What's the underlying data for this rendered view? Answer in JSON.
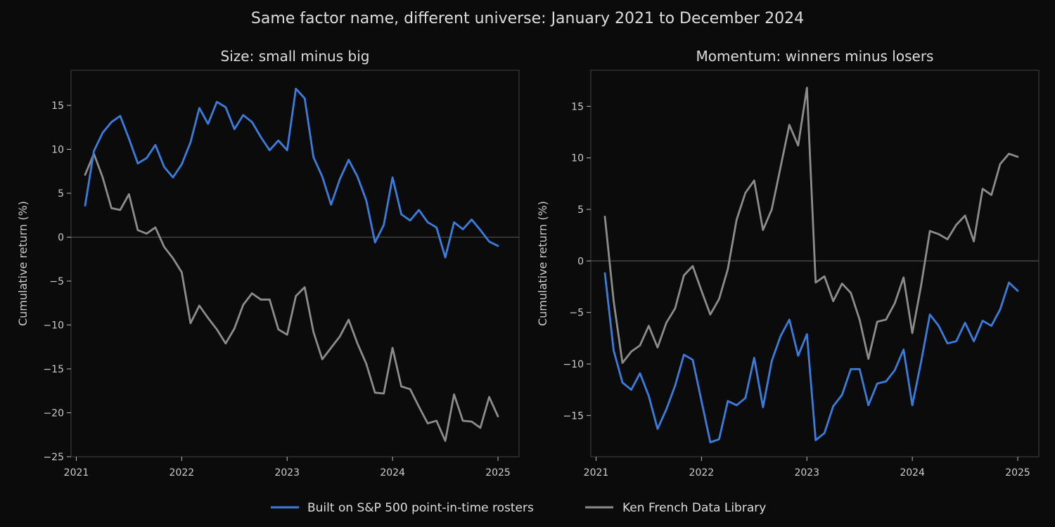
{
  "title": "Same factor name, different universe: January 2021 to December 2024",
  "legend": {
    "items": [
      {
        "label": "Built on S&P 500 point-in-time rosters",
        "color": "#3b7ddd"
      },
      {
        "label": "Ken French Data Library",
        "color": "#8c8c8c"
      }
    ],
    "placement": "bottom-center"
  },
  "chart_data": [
    {
      "type": "line",
      "title": "Size: small minus big",
      "ylabel": "Cumulative return (%)",
      "xlabel": "",
      "x_start": "2021-01",
      "x_step": "1 month",
      "xlim": [
        2020.95,
        2025.2
      ],
      "ylim": [
        -25,
        19
      ],
      "xticks": [
        2021,
        2022,
        2023,
        2024,
        2025
      ],
      "yticks": [
        15,
        10,
        5,
        0,
        -5,
        -10,
        -15,
        -20,
        -25
      ],
      "zero_line": true,
      "grid": false,
      "series": [
        {
          "name": "Built on S&P 500 point-in-time rosters",
          "color": "#3b7ddd",
          "values": [
            3.6,
            9.8,
            11.9,
            13.1,
            13.8,
            11.2,
            8.4,
            9.0,
            10.5,
            8.0,
            6.8,
            8.3,
            10.8,
            14.7,
            12.9,
            15.4,
            14.8,
            12.3,
            13.9,
            13.1,
            11.4,
            9.9,
            11.0,
            9.9,
            16.9,
            15.8,
            9.1,
            6.9,
            3.7,
            6.6,
            8.8,
            6.9,
            4.2,
            -0.6,
            1.4,
            6.8,
            2.6,
            1.9,
            3.1,
            1.7,
            1.1,
            -2.3,
            1.7,
            0.9,
            2.0,
            0.8,
            -0.5,
            -1.0
          ]
        },
        {
          "name": "Ken French Data Library",
          "color": "#8c8c8c",
          "values": [
            7.1,
            9.5,
            6.8,
            3.3,
            3.1,
            4.9,
            0.8,
            0.4,
            1.1,
            -1.1,
            -2.4,
            -4.0,
            -9.8,
            -7.8,
            -9.2,
            -10.5,
            -12.1,
            -10.4,
            -7.7,
            -6.4,
            -7.1,
            -7.1,
            -10.5,
            -11.1,
            -6.7,
            -5.7,
            -10.8,
            -13.9,
            -12.6,
            -11.3,
            -9.4,
            -12.1,
            -14.4,
            -17.7,
            -17.8,
            -12.6,
            -17.0,
            -17.3,
            -19.3,
            -21.2,
            -20.9,
            -23.2,
            -17.9,
            -20.9,
            -21.0,
            -21.7,
            -18.2,
            -20.4
          ]
        }
      ]
    },
    {
      "type": "line",
      "title": "Momentum: winners minus losers",
      "ylabel": "Cumulative return (%)",
      "xlabel": "",
      "x_start": "2021-01",
      "x_step": "1 month",
      "xlim": [
        2020.95,
        2025.2
      ],
      "ylim": [
        -19,
        18.5
      ],
      "xticks": [
        2021,
        2022,
        2023,
        2024,
        2025
      ],
      "yticks": [
        15,
        10,
        5,
        0,
        -5,
        -10,
        -15
      ],
      "zero_line": true,
      "grid": false,
      "series": [
        {
          "name": "Built on S&P 500 point-in-time rosters",
          "color": "#3b7ddd",
          "values": [
            -1.2,
            -8.7,
            -11.8,
            -12.5,
            -10.9,
            -13.1,
            -16.3,
            -14.4,
            -12.1,
            -9.1,
            -9.6,
            -13.6,
            -17.6,
            -17.3,
            -13.6,
            -14.0,
            -13.3,
            -9.4,
            -14.2,
            -9.7,
            -7.3,
            -5.7,
            -9.2,
            -7.1,
            -17.4,
            -16.7,
            -14.1,
            -13.0,
            -10.5,
            -10.5,
            -14.0,
            -11.9,
            -11.7,
            -10.6,
            -8.6,
            -14.0,
            -9.8,
            -5.2,
            -6.3,
            -8.0,
            -7.8,
            -6.0,
            -7.8,
            -5.8,
            -6.3,
            -4.7,
            -2.1,
            -2.9
          ]
        },
        {
          "name": "Ken French Data Library",
          "color": "#8c8c8c",
          "values": [
            4.3,
            -3.9,
            -9.9,
            -8.8,
            -8.2,
            -6.3,
            -8.4,
            -6.0,
            -4.6,
            -1.4,
            -0.5,
            -2.9,
            -5.2,
            -3.7,
            -0.8,
            4.0,
            6.6,
            7.8,
            3.0,
            5.0,
            9.1,
            13.2,
            11.2,
            16.8,
            -2.1,
            -1.5,
            -3.9,
            -2.2,
            -3.1,
            -5.7,
            -9.5,
            -5.9,
            -5.7,
            -4.1,
            -1.6,
            -7.0,
            -2.4,
            2.9,
            2.6,
            2.1,
            3.5,
            4.4,
            1.9,
            7.0,
            6.4,
            9.4,
            10.4,
            10.1
          ]
        }
      ]
    }
  ]
}
